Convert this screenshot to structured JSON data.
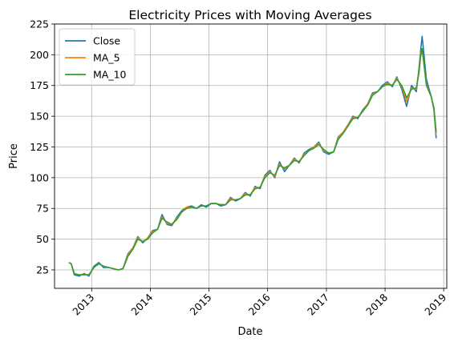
{
  "chart_data": {
    "type": "line",
    "title": "Electricity Prices with Moving Averages",
    "xlabel": "Date",
    "ylabel": "Price",
    "xlim": [
      "2012-05-15",
      "2019-01-20"
    ],
    "ylim": [
      10,
      225
    ],
    "xticks": [
      {
        "label": "2013",
        "date": "2013-01-01"
      },
      {
        "label": "2014",
        "date": "2014-01-01"
      },
      {
        "label": "2015",
        "date": "2015-01-01"
      },
      {
        "label": "2016",
        "date": "2016-01-01"
      },
      {
        "label": "2017",
        "date": "2017-01-01"
      },
      {
        "label": "2018",
        "date": "2018-01-01"
      },
      {
        "label": "2019",
        "date": "2019-01-01"
      }
    ],
    "yticks": [
      25,
      50,
      75,
      100,
      125,
      150,
      175,
      200,
      225
    ],
    "grid": true,
    "legend_position": "top-left",
    "x": [
      "2012-08-13",
      "2012-08-27",
      "2012-09-15",
      "2012-10-15",
      "2012-11-15",
      "2012-12-15",
      "2013-01-15",
      "2013-02-15",
      "2013-03-15",
      "2013-04-15",
      "2013-05-15",
      "2013-06-15",
      "2013-07-15",
      "2013-08-15",
      "2013-09-15",
      "2013-10-15",
      "2013-11-15",
      "2013-12-15",
      "2014-01-15",
      "2014-02-15",
      "2014-03-15",
      "2014-04-15",
      "2014-05-15",
      "2014-06-15",
      "2014-07-15",
      "2014-08-15",
      "2014-09-15",
      "2014-10-15",
      "2014-11-15",
      "2014-12-15",
      "2015-01-15",
      "2015-02-15",
      "2015-03-15",
      "2015-04-15",
      "2015-05-15",
      "2015-06-15",
      "2015-07-15",
      "2015-08-15",
      "2015-09-15",
      "2015-10-15",
      "2015-11-15",
      "2015-12-15",
      "2016-01-15",
      "2016-02-15",
      "2016-03-15",
      "2016-04-15",
      "2016-05-15",
      "2016-06-15",
      "2016-07-15",
      "2016-08-15",
      "2016-09-15",
      "2016-10-15",
      "2016-11-15",
      "2016-12-15",
      "2017-01-15",
      "2017-02-15",
      "2017-03-15",
      "2017-04-15",
      "2017-05-15",
      "2017-06-15",
      "2017-07-15",
      "2017-08-15",
      "2017-09-15",
      "2017-10-15",
      "2017-11-15",
      "2017-12-15",
      "2018-01-15",
      "2018-02-15",
      "2018-03-15",
      "2018-04-15",
      "2018-05-15",
      "2018-06-15",
      "2018-07-15",
      "2018-08-01",
      "2018-08-10",
      "2018-08-20",
      "2018-09-15",
      "2018-10-15",
      "2018-11-01",
      "2018-11-15"
    ],
    "series": [
      {
        "name": "Close",
        "color": "#1f77b4",
        "values": [
          31,
          30,
          21,
          20,
          22,
          20,
          28,
          31,
          27,
          27,
          26,
          25,
          26,
          38,
          43,
          52,
          47,
          51,
          57,
          58,
          70,
          62,
          61,
          68,
          73,
          76,
          77,
          75,
          78,
          76,
          79,
          79,
          77,
          78,
          84,
          81,
          83,
          88,
          85,
          93,
          91,
          102,
          106,
          100,
          113,
          105,
          110,
          116,
          112,
          120,
          123,
          125,
          129,
          121,
          119,
          121,
          133,
          137,
          143,
          150,
          148,
          155,
          160,
          169,
          170,
          175,
          178,
          174,
          182,
          172,
          158,
          175,
          170,
          190,
          203,
          215,
          180,
          166,
          155,
          132
        ]
      },
      {
        "name": "MA_5",
        "color": "#ff7f0e",
        "values": [
          31,
          30,
          22,
          21,
          21,
          21,
          27,
          30,
          28,
          27,
          26,
          25,
          26,
          37,
          43,
          51,
          48,
          51,
          56,
          58,
          68,
          63,
          62,
          67,
          72,
          76,
          76,
          75,
          77,
          77,
          79,
          79,
          78,
          78,
          83,
          82,
          83,
          87,
          86,
          92,
          92,
          101,
          105,
          101,
          111,
          107,
          110,
          115,
          113,
          119,
          122,
          125,
          128,
          122,
          120,
          121,
          132,
          137,
          143,
          149,
          149,
          154,
          160,
          168,
          170,
          174,
          177,
          175,
          181,
          174,
          162,
          173,
          172,
          188,
          201,
          205,
          176,
          166,
          156,
          135
        ]
      },
      {
        "name": "MA_10",
        "color": "#2ca02c",
        "values": [
          31,
          30,
          22,
          21,
          21,
          21,
          27,
          30,
          28,
          27,
          26,
          25,
          26,
          36,
          42,
          50,
          48,
          50,
          55,
          58,
          67,
          64,
          62,
          66,
          72,
          75,
          76,
          75,
          77,
          77,
          79,
          79,
          78,
          78,
          82,
          82,
          83,
          86,
          86,
          91,
          92,
          100,
          104,
          102,
          110,
          108,
          110,
          114,
          113,
          118,
          122,
          124,
          127,
          123,
          120,
          121,
          131,
          136,
          142,
          148,
          149,
          154,
          159,
          167,
          170,
          174,
          176,
          175,
          180,
          175,
          165,
          172,
          173,
          186,
          198,
          205,
          175,
          166,
          157,
          137
        ]
      }
    ]
  }
}
